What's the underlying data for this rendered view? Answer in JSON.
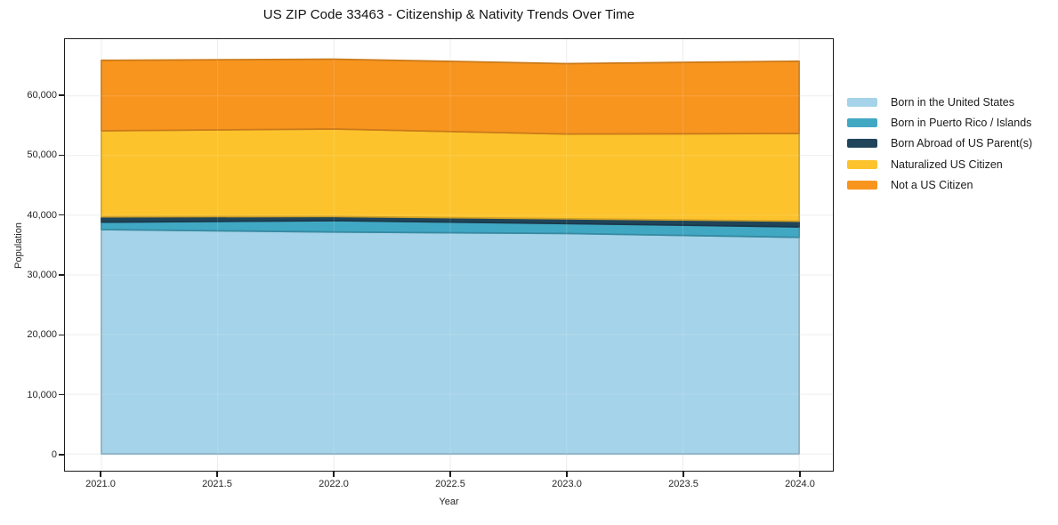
{
  "chart_data": {
    "type": "area",
    "stacked": true,
    "title": "US ZIP Code 33463 - Citizenship & Nativity Trends Over Time",
    "xlabel": "Year",
    "ylabel": "Population",
    "x": [
      2021,
      2022,
      2023,
      2024
    ],
    "xlim": [
      2020.8435,
      2024.145
    ],
    "ylim": [
      -2800,
      69500
    ],
    "grid": true,
    "legend_position": "right-outside",
    "x_ticks": {
      "values": [
        2021.0,
        2021.5,
        2022.0,
        2022.5,
        2023.0,
        2023.5,
        2024.0
      ],
      "labels": [
        "2021.0",
        "2021.5",
        "2022.0",
        "2022.5",
        "2023.0",
        "2023.5",
        "2024.0"
      ]
    },
    "y_ticks": {
      "values": [
        0,
        10000,
        20000,
        30000,
        40000,
        50000,
        60000
      ],
      "labels": [
        "0",
        "10,000",
        "20,000",
        "30,000",
        "40,000",
        "50,000",
        "60,000"
      ]
    },
    "series": [
      {
        "name": "Born in the United States",
        "color": "#a5d3e9",
        "values": [
          37600,
          37200,
          36950,
          36300
        ]
      },
      {
        "name": "Born in Puerto Rico / Islands",
        "color": "#41a8c4",
        "values": [
          1250,
          1900,
          1650,
          1750
        ]
      },
      {
        "name": "Born Abroad of US Parent(s)",
        "color": "#20455a",
        "values": [
          900,
          700,
          800,
          950
        ]
      },
      {
        "name": "Naturalized US Citizen",
        "color": "#fcc32d",
        "values": [
          14400,
          14650,
          14200,
          14700
        ]
      },
      {
        "name": "Not a US Citizen",
        "color": "#f8951f",
        "values": [
          11800,
          11700,
          11800,
          12100
        ]
      }
    ]
  }
}
